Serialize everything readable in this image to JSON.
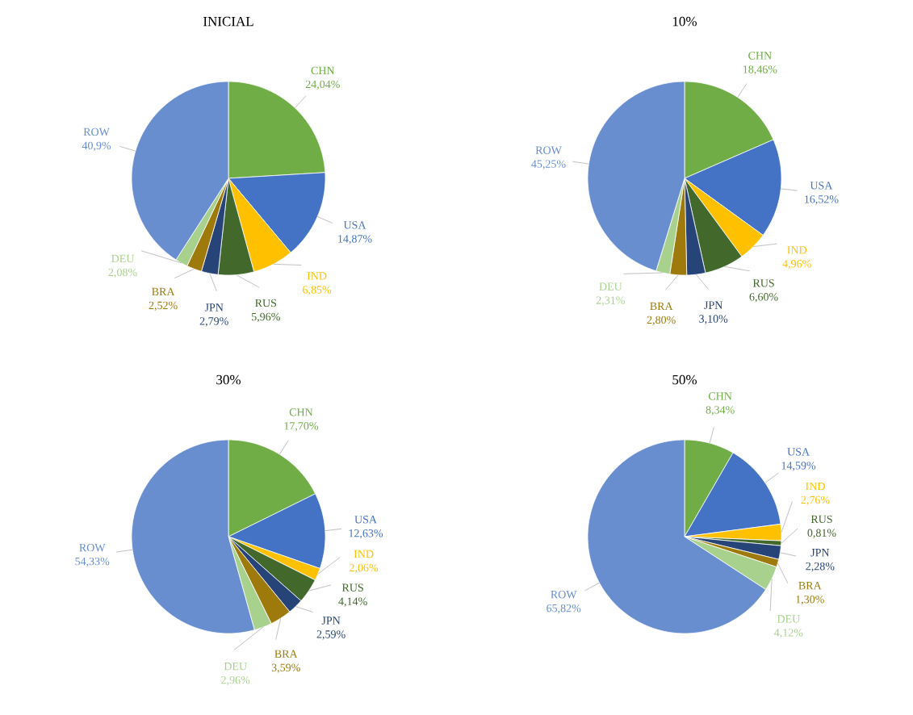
{
  "chart_data": [
    {
      "type": "pie",
      "title": "INICIAL",
      "categories": [
        "CHN",
        "USA",
        "IND",
        "RUS",
        "JPN",
        "BRA",
        "DEU",
        "ROW"
      ],
      "values": [
        24.04,
        14.87,
        6.85,
        5.96,
        2.79,
        2.52,
        2.08,
        40.9
      ],
      "value_labels": [
        "24,04%",
        "14,87%",
        "6,85%",
        "5,96%",
        "2,79%",
        "2,52%",
        "2,08%",
        "40,9%"
      ],
      "colors": [
        "#70ad47",
        "#4472c4",
        "#ffc000",
        "#43682b",
        "#264478",
        "#9e7a0c",
        "#a9d18e",
        "#698ed0"
      ]
    },
    {
      "type": "pie",
      "title": "10%",
      "categories": [
        "CHN",
        "USA",
        "IND",
        "RUS",
        "JPN",
        "BRA",
        "DEU",
        "ROW"
      ],
      "values": [
        18.46,
        16.52,
        4.96,
        6.6,
        3.1,
        2.8,
        2.31,
        45.25
      ],
      "value_labels": [
        "18,46%",
        "16,52%",
        "4,96%",
        "6,60%",
        "3,10%",
        "2,80%",
        "2,31%",
        "45,25%"
      ],
      "colors": [
        "#70ad47",
        "#4472c4",
        "#ffc000",
        "#43682b",
        "#264478",
        "#9e7a0c",
        "#a9d18e",
        "#698ed0"
      ]
    },
    {
      "type": "pie",
      "title": "30%",
      "categories": [
        "CHN",
        "USA",
        "IND",
        "RUS",
        "JPN",
        "BRA",
        "DEU",
        "ROW"
      ],
      "values": [
        17.7,
        12.63,
        2.06,
        4.14,
        2.59,
        3.59,
        2.96,
        54.33
      ],
      "value_labels": [
        "17,70%",
        "12,63%",
        "2,06%",
        "4,14%",
        "2,59%",
        "3,59%",
        "2,96%",
        "54,33%"
      ],
      "colors": [
        "#70ad47",
        "#4472c4",
        "#ffc000",
        "#43682b",
        "#264478",
        "#9e7a0c",
        "#a9d18e",
        "#698ed0"
      ]
    },
    {
      "type": "pie",
      "title": "50%",
      "categories": [
        "CHN",
        "USA",
        "IND",
        "RUS",
        "JPN",
        "BRA",
        "DEU",
        "ROW"
      ],
      "values": [
        8.34,
        14.59,
        2.76,
        0.81,
        2.28,
        1.3,
        4.12,
        65.82
      ],
      "value_labels": [
        "8,34%",
        "14,59%",
        "2,76%",
        "0,81%",
        "2,28%",
        "1,30%",
        "4,12%",
        "65,82%"
      ],
      "colors": [
        "#70ad47",
        "#4472c4",
        "#ffc000",
        "#43682b",
        "#264478",
        "#9e7a0c",
        "#a9d18e",
        "#698ed0"
      ]
    }
  ]
}
